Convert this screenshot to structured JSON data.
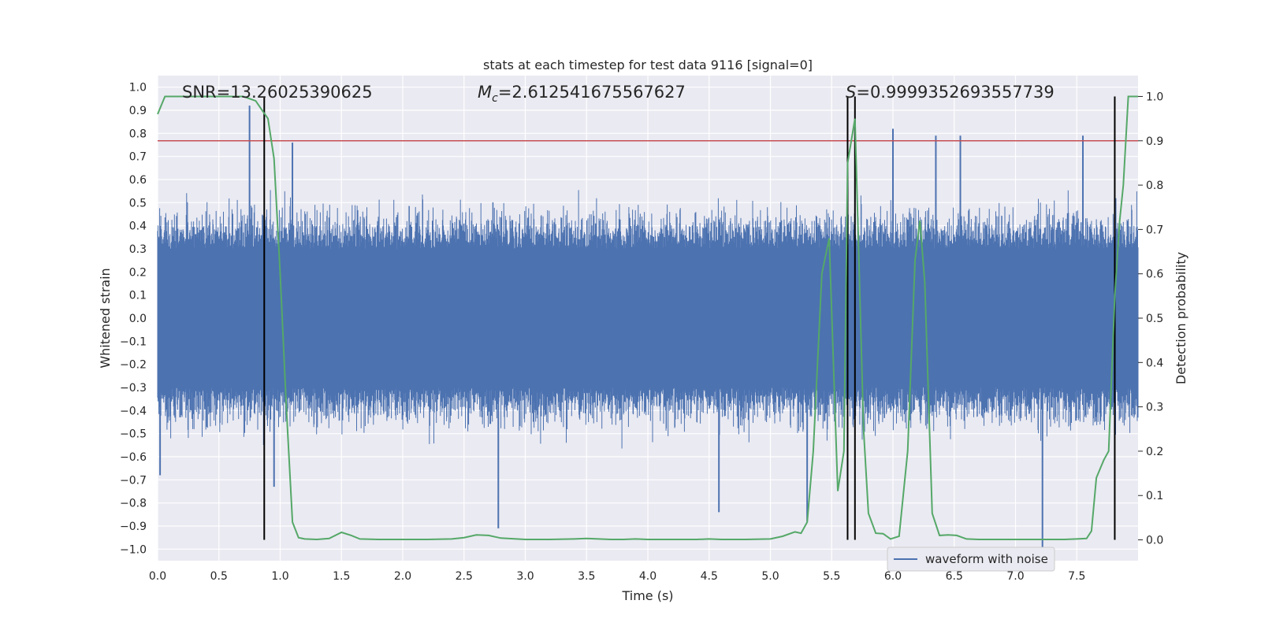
{
  "chart_data": {
    "type": "line",
    "title": "stats at each timestep for test data 9116 [signal=0]",
    "xlabel": "Time (s)",
    "ylabel_left": "Whitened strain",
    "ylabel_right": "Detection probability",
    "xlim": [
      0.0,
      8.0
    ],
    "ylim_left": [
      -1.05,
      1.05
    ],
    "ylim_right": [
      -0.047,
      1.047
    ],
    "x_ticks": [
      "0.0",
      "0.5",
      "1.0",
      "1.5",
      "2.0",
      "2.5",
      "3.0",
      "3.5",
      "4.0",
      "4.5",
      "5.0",
      "5.5",
      "6.0",
      "6.5",
      "7.0",
      "7.5"
    ],
    "y_ticks_left": [
      "1.0",
      "0.9",
      "0.8",
      "0.7",
      "0.6",
      "0.5",
      "0.4",
      "0.3",
      "0.2",
      "0.1",
      "0.0",
      "−0.1",
      "−0.2",
      "−0.3",
      "−0.4",
      "−0.5",
      "−0.6",
      "−0.7",
      "−0.8",
      "−0.9",
      "−1.0"
    ],
    "y_ticks_right": [
      "1.0",
      "0.9",
      "0.8",
      "0.7",
      "0.6",
      "0.5",
      "0.4",
      "0.3",
      "0.2",
      "0.1",
      "0.0"
    ],
    "annotations": {
      "snr": "SNR=13.26025390625",
      "mc_symbol": "M",
      "mc_sub": "c",
      "mc_value": "=2.612541675567627",
      "s_symbol": "S",
      "s_value": "=0.9999352693557739"
    },
    "legend": {
      "label": "waveform with noise",
      "placement": "lower-right"
    },
    "threshold": {
      "value": 0.9,
      "axis": "right",
      "color": "#c44e52"
    },
    "vertical_lines": [
      0.87,
      5.63,
      5.69,
      7.81
    ],
    "waveform": {
      "name": "waveform with noise",
      "color": "#4c72b0",
      "envelope": 0.55,
      "num_points": 2400
    },
    "waveform_spikes": [
      {
        "x": 0.75,
        "y": 0.92
      },
      {
        "x": 1.1,
        "y": 0.76
      },
      {
        "x": 6.0,
        "y": 0.82
      },
      {
        "x": 6.35,
        "y": 0.79
      },
      {
        "x": 6.55,
        "y": 0.79
      },
      {
        "x": 7.55,
        "y": 0.79
      },
      {
        "x": 2.78,
        "y": -0.91
      },
      {
        "x": 4.58,
        "y": -0.84
      },
      {
        "x": 5.3,
        "y": -0.88
      },
      {
        "x": 7.22,
        "y": -1.0
      },
      {
        "x": 0.02,
        "y": -0.68
      },
      {
        "x": 0.95,
        "y": -0.73
      }
    ],
    "probability": {
      "color": "#55a868",
      "x": [
        0.0,
        0.06,
        0.12,
        0.2,
        0.3,
        0.4,
        0.5,
        0.6,
        0.7,
        0.8,
        0.85,
        0.9,
        0.95,
        1.0,
        1.05,
        1.1,
        1.15,
        1.2,
        1.3,
        1.4,
        1.5,
        1.58,
        1.65,
        1.8,
        2.0,
        2.2,
        2.4,
        2.5,
        2.6,
        2.7,
        2.8,
        3.0,
        3.2,
        3.4,
        3.5,
        3.6,
        3.7,
        3.8,
        3.9,
        4.0,
        4.2,
        4.4,
        4.5,
        4.6,
        4.8,
        5.0,
        5.1,
        5.2,
        5.25,
        5.3,
        5.35,
        5.42,
        5.48,
        5.55,
        5.6,
        5.63,
        5.69,
        5.72,
        5.76,
        5.8,
        5.86,
        5.92,
        5.98,
        6.05,
        6.12,
        6.18,
        6.22,
        6.26,
        6.32,
        6.38,
        6.45,
        6.52,
        6.6,
        6.7,
        6.8,
        7.0,
        7.2,
        7.4,
        7.5,
        7.58,
        7.62,
        7.66,
        7.72,
        7.76,
        7.81,
        7.85,
        7.88,
        7.92,
        8.0
      ],
      "y": [
        0.96,
        1.0,
        1.0,
        1.0,
        1.0,
        1.0,
        1.0,
        1.0,
        1.0,
        0.99,
        0.97,
        0.95,
        0.86,
        0.6,
        0.3,
        0.04,
        0.005,
        0.002,
        0.001,
        0.003,
        0.017,
        0.01,
        0.002,
        0.001,
        0.001,
        0.001,
        0.002,
        0.005,
        0.011,
        0.01,
        0.004,
        0.001,
        0.001,
        0.002,
        0.003,
        0.002,
        0.001,
        0.001,
        0.002,
        0.001,
        0.001,
        0.001,
        0.002,
        0.001,
        0.001,
        0.002,
        0.008,
        0.018,
        0.015,
        0.04,
        0.2,
        0.6,
        0.68,
        0.11,
        0.2,
        0.85,
        0.95,
        0.65,
        0.25,
        0.06,
        0.015,
        0.014,
        0.002,
        0.008,
        0.2,
        0.63,
        0.72,
        0.58,
        0.06,
        0.01,
        0.011,
        0.01,
        0.002,
        0.001,
        0.001,
        0.001,
        0.001,
        0.001,
        0.002,
        0.003,
        0.02,
        0.14,
        0.18,
        0.2,
        0.55,
        0.72,
        0.8,
        1.0,
        1.0
      ]
    }
  }
}
